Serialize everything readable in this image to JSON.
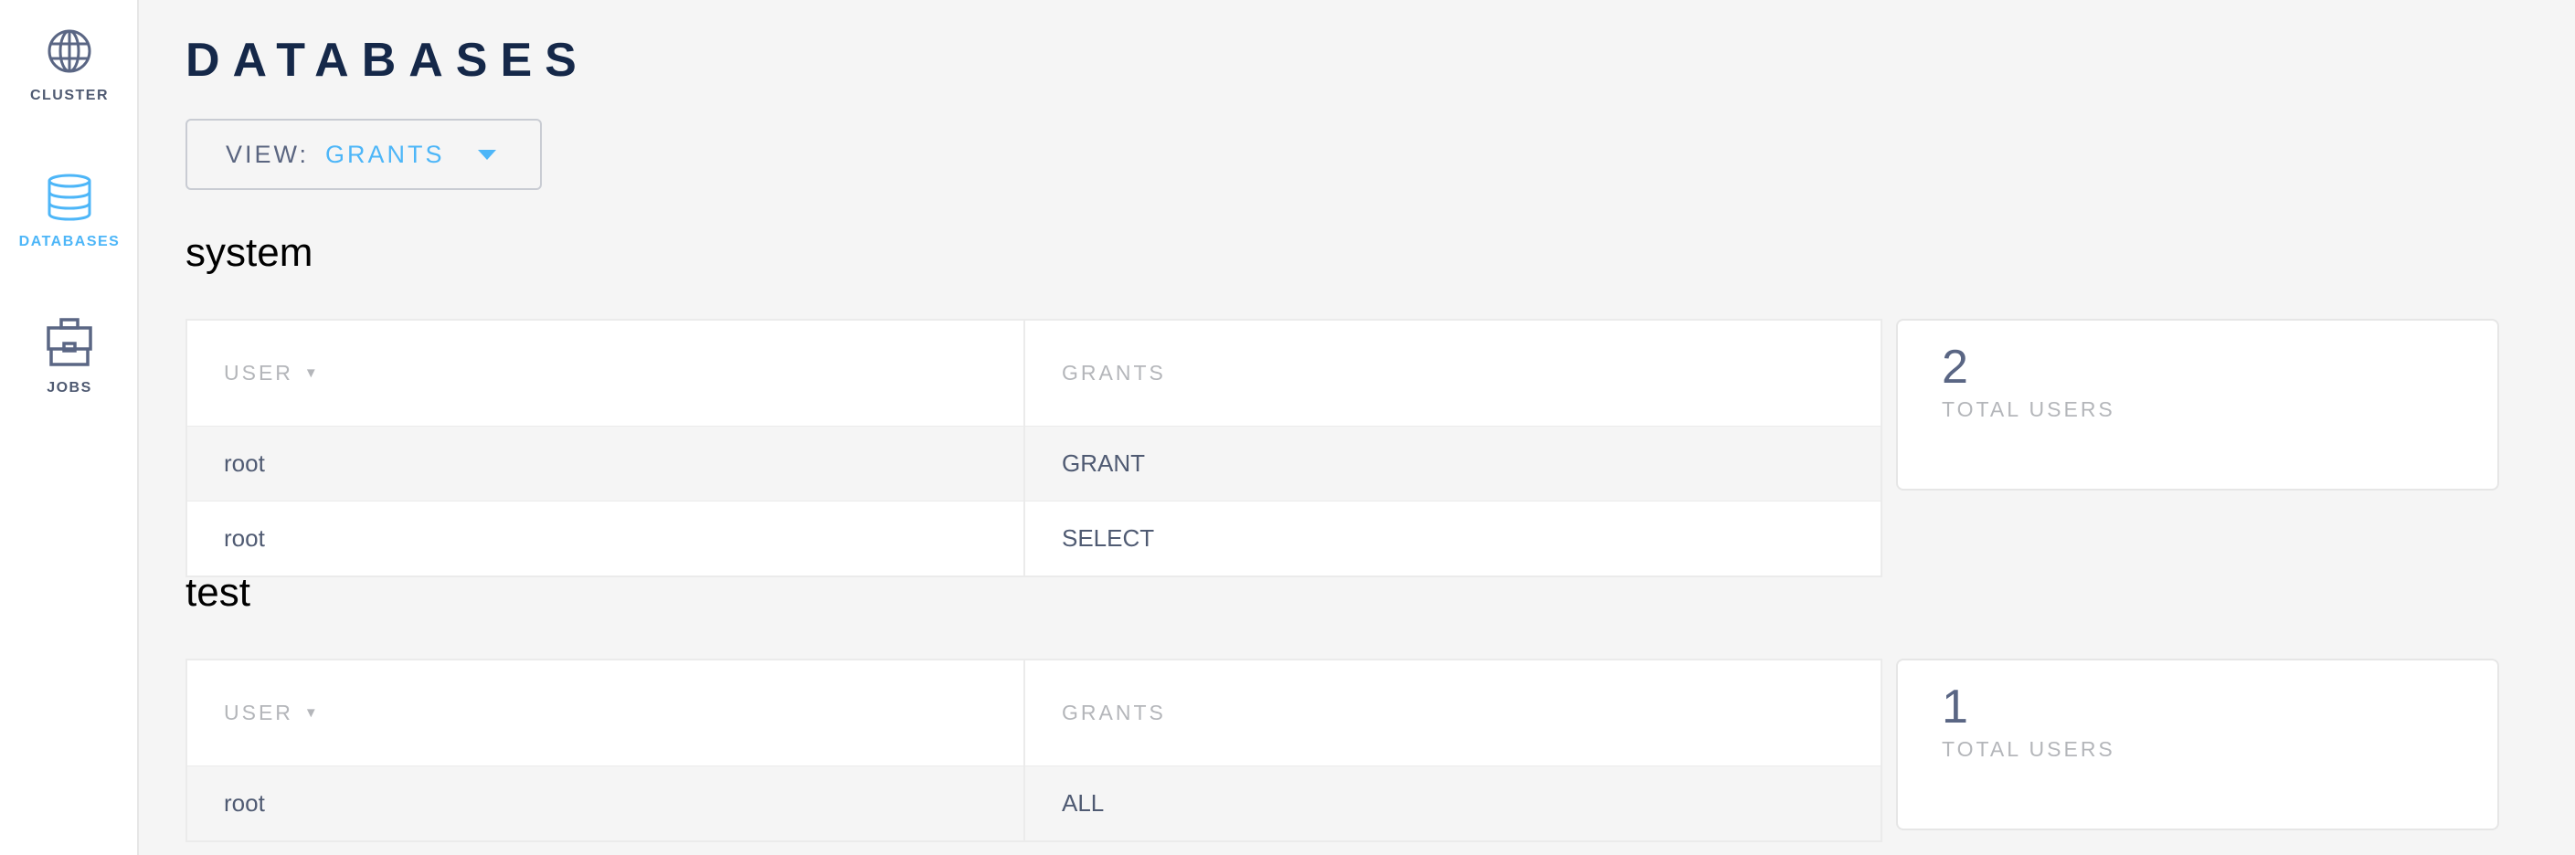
{
  "sidebar": {
    "items": [
      {
        "label": "CLUSTER",
        "icon": "globe-icon"
      },
      {
        "label": "DATABASES",
        "icon": "database-icon",
        "active": true
      },
      {
        "label": "JOBS",
        "icon": "briefcase-icon"
      }
    ]
  },
  "page": {
    "title": "DATABASES"
  },
  "view_dropdown": {
    "label": "VIEW:",
    "value": "GRANTS"
  },
  "colors": {
    "accent": "#4db6f8",
    "title": "#152849",
    "text": "#4f5a72"
  },
  "databases": [
    {
      "name": "system",
      "columns": [
        "USER",
        "GRANTS"
      ],
      "rows": [
        [
          "root",
          "GRANT"
        ],
        [
          "root",
          "SELECT"
        ]
      ],
      "total_users": "2",
      "total_label": "TOTAL USERS"
    },
    {
      "name": "test",
      "columns": [
        "USER",
        "GRANTS"
      ],
      "rows": [
        [
          "root",
          "ALL"
        ]
      ],
      "total_users": "1",
      "total_label": "TOTAL USERS"
    }
  ]
}
